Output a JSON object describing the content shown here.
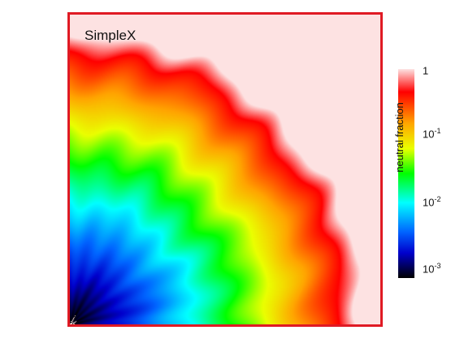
{
  "chart_data": {
    "type": "heatmap",
    "title": "SimpleX",
    "colorbar": {
      "label": "neutral fraction",
      "scale": "log",
      "range": [
        0.001,
        1
      ],
      "ticks": [
        {
          "value": 1,
          "base": "1",
          "exp": ""
        },
        {
          "value": 0.1,
          "base": "10",
          "exp": "-1"
        },
        {
          "value": 0.01,
          "base": "10",
          "exp": "-2"
        },
        {
          "value": 0.001,
          "base": "10",
          "exp": "-3"
        }
      ],
      "colormap": [
        "#000000",
        "#0000cc",
        "#0064ff",
        "#00ffff",
        "#00ff00",
        "#eaff00",
        "#ffa500",
        "#ff0000",
        "#fde2e2"
      ]
    },
    "frame_color": "#e01a24",
    "ionization_front_radius_fraction": 0.88,
    "source_corner": "bottom-left"
  }
}
